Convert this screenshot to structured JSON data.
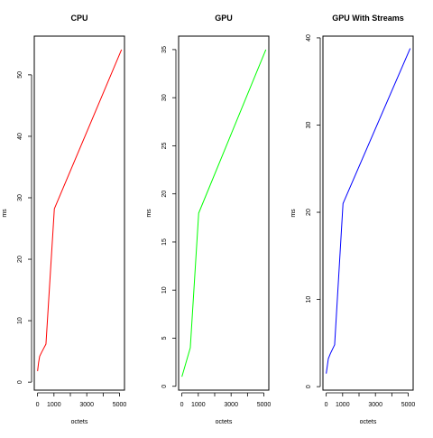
{
  "chart_data": [
    {
      "type": "line",
      "title": "CPU",
      "xlabel": "octets",
      "ylabel": "ms",
      "xlim": [
        -200,
        5300
      ],
      "ylim": [
        -1.3,
        56.3
      ],
      "xticks": [
        0,
        1000,
        2000,
        3000,
        4000,
        5000
      ],
      "xtick_labels": [
        "0",
        "1000",
        "",
        "3000",
        "",
        "5000"
      ],
      "yticks": [
        0,
        10,
        20,
        30,
        40,
        50
      ],
      "ytick_labels": [
        "0",
        "10",
        "20",
        "30",
        "40",
        "50"
      ],
      "series": [
        {
          "color": "#ff0000",
          "x": [
            1,
            32,
            64,
            128,
            256,
            512,
            1024,
            5120
          ],
          "y": [
            1.8,
            2.5,
            3.2,
            4.2,
            4.9,
            6.2,
            28.2,
            54.1
          ]
        }
      ]
    },
    {
      "type": "line",
      "title": "GPU",
      "xlabel": "octets",
      "ylabel": "ms",
      "xlim": [
        -200,
        5300
      ],
      "ylim": [
        -0.4,
        36.4
      ],
      "xticks": [
        0,
        1000,
        2000,
        3000,
        4000,
        5000
      ],
      "xtick_labels": [
        "0",
        "1000",
        "",
        "3000",
        "",
        "5000"
      ],
      "yticks": [
        0,
        5,
        10,
        15,
        20,
        25,
        30,
        35
      ],
      "ytick_labels": [
        "0",
        "5",
        "10",
        "15",
        "20",
        "25",
        "30",
        "35"
      ],
      "series": [
        {
          "color": "#00ff00",
          "x": [
            1,
            512,
            1024,
            5120
          ],
          "y": [
            1.0,
            4.0,
            18.0,
            35.0
          ]
        }
      ]
    },
    {
      "type": "line",
      "title": "GPU With Streams",
      "xlabel": "octets",
      "ylabel": "ms",
      "xlim": [
        -200,
        5300
      ],
      "ylim": [
        -0.4,
        40.2
      ],
      "xticks": [
        0,
        1000,
        2000,
        3000,
        4000,
        5000
      ],
      "xtick_labels": [
        "0",
        "1000",
        "",
        "3000",
        "",
        "5000"
      ],
      "yticks": [
        0,
        10,
        20,
        30,
        40
      ],
      "ytick_labels": [
        "0",
        "10",
        "20",
        "30",
        "40"
      ],
      "series": [
        {
          "color": "#0000ff",
          "x": [
            1,
            128,
            256,
            512,
            1024,
            5120
          ],
          "y": [
            1.5,
            3.2,
            3.8,
            4.8,
            21.0,
            38.8
          ]
        }
      ]
    }
  ]
}
